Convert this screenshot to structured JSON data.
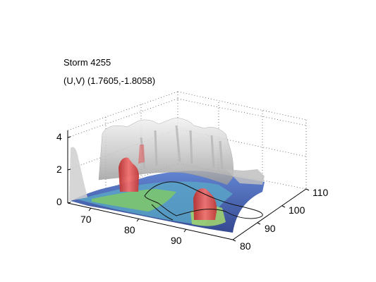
{
  "figure": {
    "title": "Storm 4255",
    "subtitle": "(U,V) (1.7605,-1.8058)"
  },
  "axes": {
    "z_ticks": [
      "0",
      "2",
      "4"
    ],
    "x_ticks": [
      "70",
      "80",
      "90"
    ],
    "y_ticks": [
      "80",
      "90",
      "100",
      "110"
    ]
  },
  "colors": {
    "gray_surface": "#c8c8c8",
    "blue_surface": "#3a5aa8",
    "green_surface": "#7ec86a",
    "red_surface": "#e04848",
    "grid": "#555555"
  }
}
